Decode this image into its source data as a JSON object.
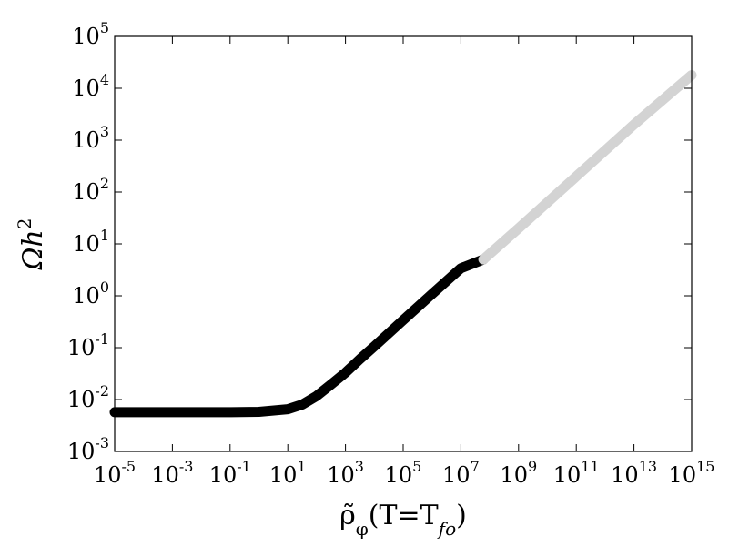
{
  "chart_data": {
    "type": "line",
    "title": "",
    "xlabel": "ρ̃_φ(T=T_fo)",
    "ylabel": "Ωh²",
    "xscale": "log",
    "yscale": "log",
    "xlim": [
      1e-05,
      1000000000000000.0
    ],
    "ylim": [
      0.001,
      100000.0
    ],
    "grid": false,
    "legend": "none",
    "x_ticks": [
      {
        "base": "10",
        "exp": "-5",
        "value": 1e-05
      },
      {
        "base": "10",
        "exp": "-3",
        "value": 0.001
      },
      {
        "base": "10",
        "exp": "-1",
        "value": 0.1
      },
      {
        "base": "10",
        "exp": "1",
        "value": 10.0
      },
      {
        "base": "10",
        "exp": "3",
        "value": 1000.0
      },
      {
        "base": "10",
        "exp": "5",
        "value": 100000.0
      },
      {
        "base": "10",
        "exp": "7",
        "value": 10000000.0
      },
      {
        "base": "10",
        "exp": "9",
        "value": 1000000000.0
      },
      {
        "base": "10",
        "exp": "11",
        "value": 100000000000.0
      },
      {
        "base": "10",
        "exp": "13",
        "value": 10000000000000.0
      },
      {
        "base": "10",
        "exp": "15",
        "value": 1000000000000000.0
      }
    ],
    "y_ticks": [
      {
        "base": "10",
        "exp": "-3",
        "value": 0.001
      },
      {
        "base": "10",
        "exp": "-2",
        "value": 0.01
      },
      {
        "base": "10",
        "exp": "-1",
        "value": 0.1
      },
      {
        "base": "10",
        "exp": "0",
        "value": 1.0
      },
      {
        "base": "10",
        "exp": "1",
        "value": 10.0
      },
      {
        "base": "10",
        "exp": "2",
        "value": 100.0
      },
      {
        "base": "10",
        "exp": "3",
        "value": 1000.0
      },
      {
        "base": "10",
        "exp": "4",
        "value": 10000.0
      },
      {
        "base": "10",
        "exp": "5",
        "value": 100000.0
      }
    ],
    "series": [
      {
        "color": "#000000",
        "x": [
          1e-05,
          0.001,
          0.1,
          1,
          10,
          31.6,
          100,
          316,
          1000,
          3160,
          10000.0,
          100000.0,
          1000000.0,
          10000000.0,
          60000000.0
        ],
        "y": [
          0.0057,
          0.0057,
          0.0057,
          0.0058,
          0.0065,
          0.008,
          0.0117,
          0.0195,
          0.033,
          0.06,
          0.106,
          0.34,
          1.08,
          3.4,
          5.0
        ]
      },
      {
        "color": "#d3d3d3",
        "x": [
          60000000.0,
          1000000000.0,
          100000000000.0,
          10000000000000.0,
          1000000000000000.0
        ],
        "y": [
          5.0,
          20,
          200,
          2000,
          18000
        ]
      }
    ]
  }
}
